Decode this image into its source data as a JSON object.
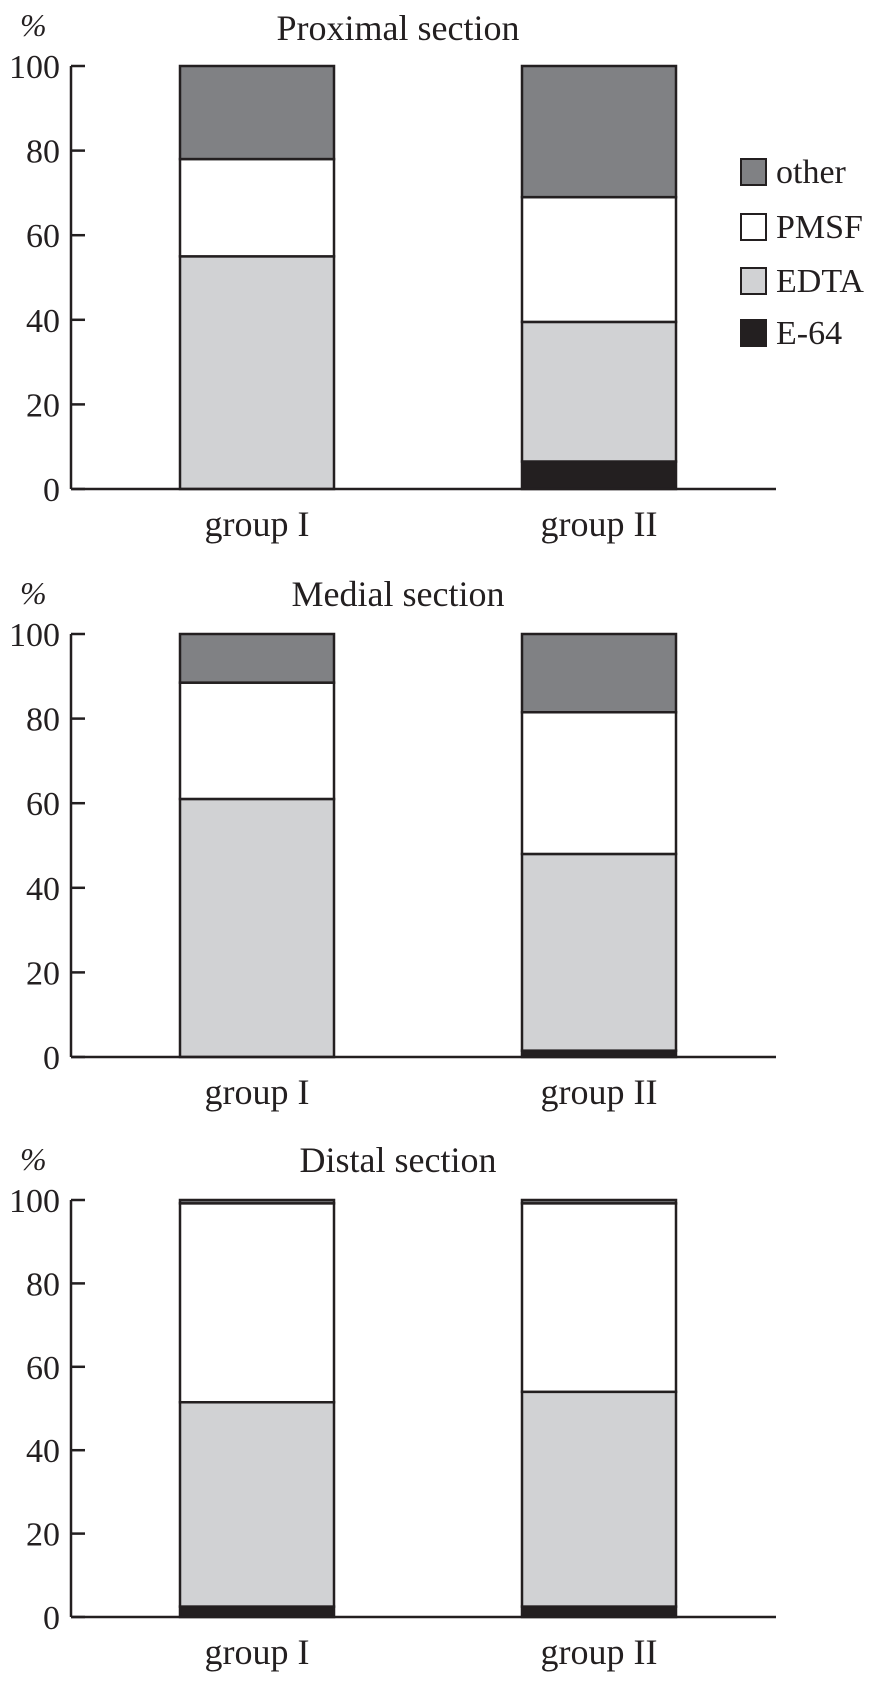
{
  "chart_data": [
    {
      "type": "bar",
      "stacked": true,
      "title": "Proximal section",
      "ylabel": "%",
      "xlabel": "",
      "ylim": [
        0,
        100
      ],
      "yticks": [
        0,
        20,
        40,
        60,
        80,
        100
      ],
      "categories": [
        "group I",
        "group II"
      ],
      "series": [
        {
          "name": "E-64",
          "values": [
            0,
            6.5
          ]
        },
        {
          "name": "EDTA",
          "values": [
            55,
            33
          ]
        },
        {
          "name": "PMSF",
          "values": [
            23,
            29.5
          ]
        },
        {
          "name": "other",
          "values": [
            22,
            31
          ]
        }
      ],
      "legend": "right",
      "grid": false
    },
    {
      "type": "bar",
      "stacked": true,
      "title": "Medial section",
      "ylabel": "%",
      "xlabel": "",
      "ylim": [
        0,
        100
      ],
      "yticks": [
        0,
        20,
        40,
        60,
        80,
        100
      ],
      "categories": [
        "group I",
        "group II"
      ],
      "series": [
        {
          "name": "E-64",
          "values": [
            0,
            1.5
          ]
        },
        {
          "name": "EDTA",
          "values": [
            61,
            46.5
          ]
        },
        {
          "name": "PMSF",
          "values": [
            27.5,
            33.5
          ]
        },
        {
          "name": "other",
          "values": [
            11.5,
            18.5
          ]
        }
      ],
      "grid": false
    },
    {
      "type": "bar",
      "stacked": true,
      "title": "Distal section",
      "ylabel": "%",
      "xlabel": "",
      "ylim": [
        0,
        100
      ],
      "yticks": [
        0,
        20,
        40,
        60,
        80,
        100
      ],
      "categories": [
        "group I",
        "group II"
      ],
      "series": [
        {
          "name": "E-64",
          "values": [
            2.5,
            2.5
          ]
        },
        {
          "name": "EDTA",
          "values": [
            49,
            51.5
          ]
        },
        {
          "name": "PMSF",
          "values": [
            47.7,
            45.2
          ]
        },
        {
          "name": "other",
          "values": [
            0.8,
            0.8
          ]
        }
      ],
      "grid": false
    }
  ],
  "legend": {
    "items": [
      {
        "name": "other",
        "color": "#808184"
      },
      {
        "name": "PMSF",
        "color": "#ffffff"
      },
      {
        "name": "EDTA",
        "color": "#d1d2d4"
      },
      {
        "name": "E-64",
        "color": "#231f20"
      }
    ]
  },
  "colors": {
    "E-64": "#231f20",
    "EDTA": "#d1d2d4",
    "PMSF": "#ffffff",
    "other": "#808184",
    "stroke": "#231f20"
  }
}
